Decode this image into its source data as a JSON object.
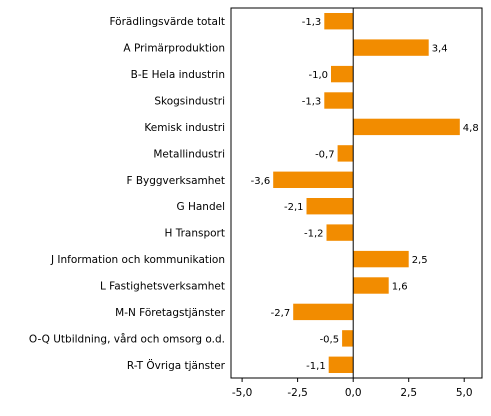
{
  "chart_data": {
    "type": "bar",
    "orientation": "horizontal",
    "title": "",
    "xlabel": "",
    "ylabel": "",
    "categories": [
      "Förädlingsvärde totalt",
      "A Primärproduktion",
      "B-E Hela industrin",
      "Skogsindustri",
      "Kemisk industri",
      "Metallindustri",
      "F Byggverksamhet",
      "G Handel",
      "H Transport",
      "J Information och kommunikation",
      "L Fastighetsverksamhet",
      "M-N Företagstjänster",
      "O-Q Utbildning, vård och omsorg o.d.",
      "R-T Övriga tjänster"
    ],
    "values": [
      -1.3,
      3.4,
      -1.0,
      -1.3,
      4.8,
      -0.7,
      -3.6,
      -2.1,
      -1.2,
      2.5,
      1.6,
      -2.7,
      -0.5,
      -1.1
    ],
    "value_labels": [
      "-1,3",
      "3,4",
      "-1,0",
      "-1,3",
      "4,8",
      "-0,7",
      "-3,6",
      "-2,1",
      "-1,2",
      "2,5",
      "1,6",
      "-2,7",
      "-0,5",
      "-1,1"
    ],
    "xlim": [
      -5.5,
      5.8
    ],
    "ticks": [
      -5.0,
      -2.5,
      0.0,
      2.5,
      5.0
    ],
    "tick_labels": [
      "-5,0",
      "-2,5",
      "0,0",
      "2,5",
      "5,0"
    ],
    "grid": false,
    "legend": "none",
    "bar_color": "#f28c00"
  }
}
